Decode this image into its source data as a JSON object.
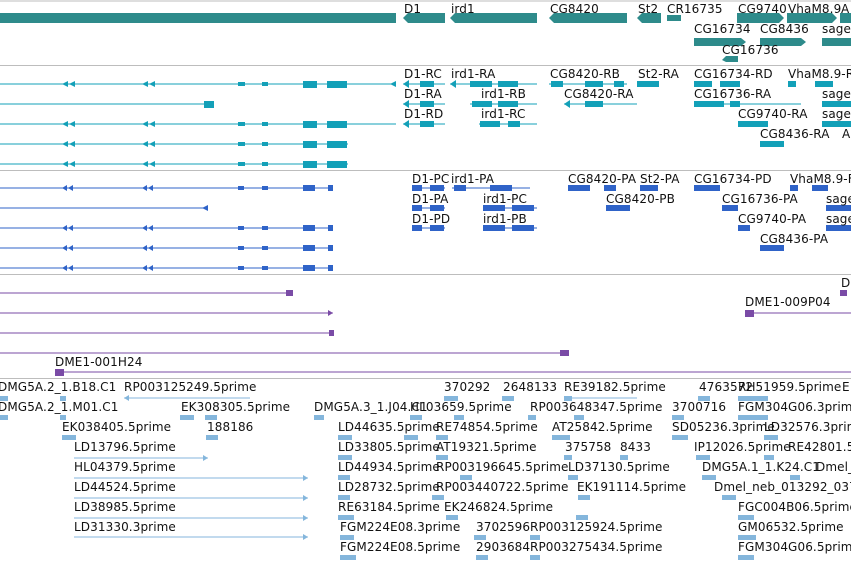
{
  "colors": {
    "gene": "#2e8b8b",
    "mrna_teal": "#13a0b8",
    "mrna_blue": "#2f63c8",
    "clone": "#7a4ba6",
    "est": "#84b6dc",
    "divider": "#bdbdbd"
  },
  "tracks": {
    "genes": {
      "labels": [
        "D1",
        "ird1",
        "CG8420",
        "St2",
        "CR16735",
        "CG9740",
        "VhaM8.9",
        "A",
        "CG16734",
        "CG8436",
        "sage",
        "CG16736"
      ]
    },
    "transcripts_a": {
      "labels": [
        "D1-RC",
        "ird1-RA",
        "CG8420-RB",
        "St2-RA",
        "CG16734-RD",
        "VhaM8.9-R",
        "D1-RA",
        "ird1-RB",
        "CG8420-RA",
        "CG16736-RA",
        "sage-",
        "D1-RD",
        "ird1-RC",
        "CG9740-RA",
        "sage-",
        "CG8436-RA",
        "A"
      ]
    },
    "transcripts_b": {
      "labels": [
        "D1-PC",
        "ird1-PA",
        "CG8420-PA",
        "St2-PA",
        "CG16734-PD",
        "VhaM8.9-F",
        "D1-PA",
        "ird1-PC",
        "CG8420-PB",
        "CG16736-PA",
        "sage",
        "D1-PD",
        "ird1-PB",
        "CG9740-PA",
        "sage",
        "CG8436-PA"
      ]
    },
    "clones": {
      "labels": [
        "D",
        "DME1-009P04",
        "DME1-001H24"
      ]
    },
    "ests": {
      "labels": [
        "DMG5A.2_1.B18.C1",
        "RP003125249.5prime",
        "370292",
        "2648133",
        "RE39182.5prime",
        "4763572",
        "RH51959.5prime",
        "E",
        "DMG5A.2_1.M01.C1",
        "EK308305.5prime",
        "DMG5A.3_1.J04.C1",
        "HL03659.5prime",
        "RP003648347.5prime",
        "3700716",
        "FGM304G06.3prime",
        "EK038405.5prime",
        "188186",
        "LD44635.5prime",
        "RE74854.5prime",
        "AT25842.5prime",
        "SD05236.3prime",
        "LD32576.3prime",
        "LD13796.5prime",
        "LD33805.5prime",
        "AT19321.5prime",
        "375758",
        "8433",
        "IP12026.5prime",
        "RE42801.5",
        "HL04379.5prime",
        "LD44934.5prime",
        "RP003196645.5prime",
        "LD37130.5prime",
        "DMG5A.1_1.K24.C1",
        "Dmel_",
        "LD44524.5prime",
        "LD28732.5prime",
        "RP003440722.5prime",
        "EK191114.5prime",
        "Dmel_neb_013292_037",
        "LD38985.5prime",
        "RE63184.5prime",
        "EK246824.5prime",
        "FGC004B06.5prime",
        "LD31330.3prime",
        "FGM224E08.3prime",
        "3702596",
        "RP003125924.5prime",
        "GM06532.5prime",
        "FGM224E08.5prime",
        "2903684",
        "RP003275434.5prime",
        "FGM304G06.5prime"
      ]
    }
  }
}
